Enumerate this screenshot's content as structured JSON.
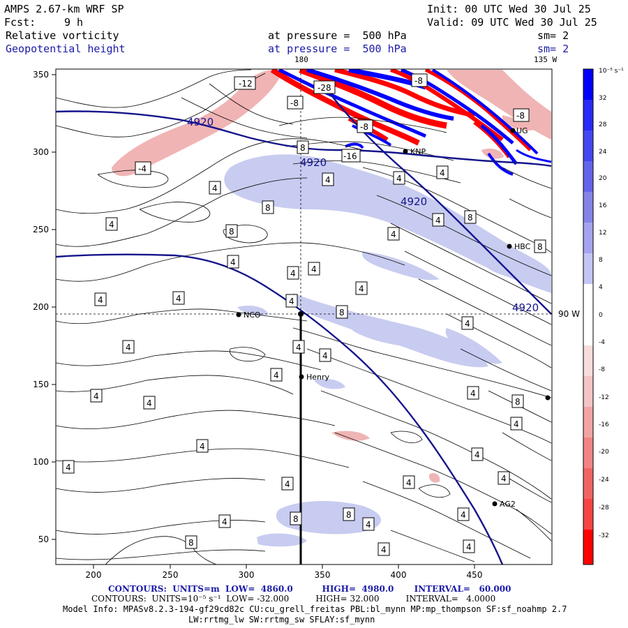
{
  "header": {
    "model": "AMPS 2.67-km WRF SP",
    "init": "Init: 00 UTC Wed 30 Jul 25",
    "fcst_label": "Fcst:",
    "fcst_value": "9 h",
    "valid": "Valid: 09 UTC Wed 30 Jul 25",
    "field1_name": "Relative vorticity",
    "field1_level": "at pressure =  500 hPa",
    "field1_sm": "sm= 2",
    "field2_name": "Geopotential height",
    "field2_level": "at pressure =  500 hPa",
    "field2_sm": "sm= 2"
  },
  "map": {
    "meridian_top": "180",
    "meridian_right": "135 W",
    "meridian_side": "90 W",
    "x_ticks": [
      "200",
      "250",
      "300",
      "350",
      "400",
      "450"
    ],
    "y_ticks": [
      "350",
      "300",
      "250",
      "200",
      "150",
      "100",
      "50"
    ],
    "stations": {
      "knp": "KNP",
      "hbc": "HBC",
      "nco": "NCO",
      "henry": "Henry",
      "ag2": "AG2",
      "ug": "UG"
    },
    "height_labels": [
      "4920",
      "4920",
      "4920",
      "4920"
    ],
    "vorticity_labels": [
      "-12",
      "-28",
      "-8",
      "-8",
      "-8",
      "-8",
      "-4",
      "-16",
      "8",
      "4",
      "4",
      "4",
      "8",
      "8",
      "4",
      "4",
      "4",
      "4",
      "4",
      "4",
      "4",
      "4",
      "8",
      "4",
      "8",
      "4",
      "4",
      "4",
      "8",
      "4",
      "4",
      "4",
      "4",
      "4",
      "4",
      "4",
      "8",
      "4",
      "4",
      "4",
      "4",
      "4",
      "4",
      "8",
      "8",
      "4",
      "4",
      "4",
      "4",
      "8",
      "4",
      "4"
    ],
    "colors": {
      "height_contour": "#14148c",
      "positive_shading": "#c8ccf0",
      "negative_shading": "#f0b4b4",
      "strong_positive": "#0000ff",
      "strong_negative": "#ff0000"
    }
  },
  "colorbar": {
    "unit": "10⁻⁵ s⁻¹",
    "labels": [
      "32",
      "28",
      "24",
      "20",
      "16",
      "12",
      "8",
      "4",
      "0",
      "-4",
      "-8",
      "-12",
      "-16",
      "-20",
      "-24",
      "-28",
      "-32"
    ]
  },
  "footer": {
    "line1": "CONTOURS:  UNITS=m  LOW=  4860.0          HIGH=  4980.0       INTERVAL=   60.000",
    "line2": "CONTOURS:  UNITS=10⁻⁵ s⁻¹  LOW= -32.000          HIGH= 32.000          INTERVAL=   4.0000",
    "line3": "Model Info: MPASv8.2.3-194-gf29cd82c CU:cu_grell_freitas PBL:bl_mynn MP:mp_thompson SF:sf_noahmp 2.7",
    "line4": "LW:rrtmg_lw SW:rrtmg_sw SFLAY:sf_mynn"
  }
}
